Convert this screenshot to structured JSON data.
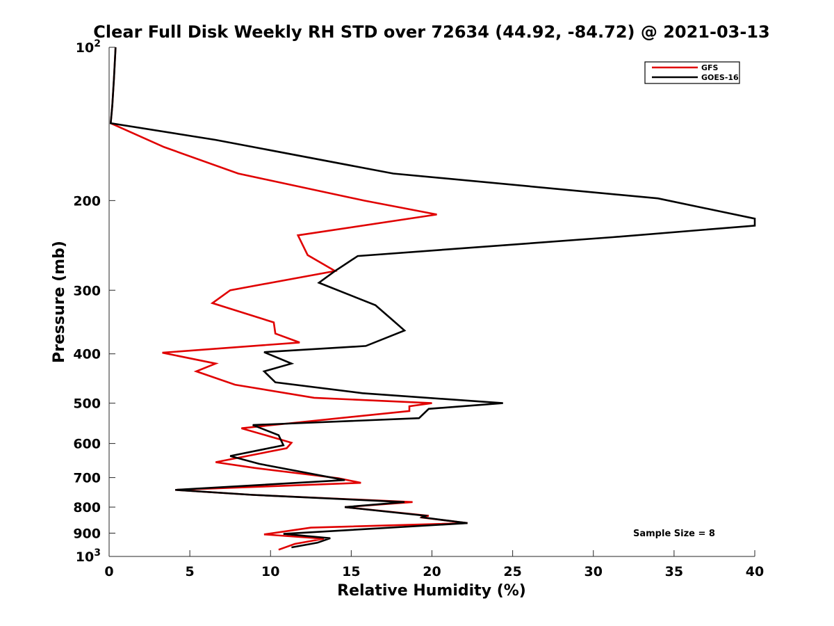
{
  "chart_data": {
    "type": "line",
    "title": "Clear Full Disk Weekly RH STD over 72634 (44.92, -84.72) @ 2021-03-13",
    "xlabel": "Relative Humidity (%)",
    "ylabel": "Pressure (mb)",
    "xlim": [
      0,
      40
    ],
    "ylim": [
      100,
      1000
    ],
    "yscale": "log",
    "y_reversed": true,
    "grid": false,
    "x_ticks": [
      0,
      5,
      10,
      15,
      20,
      25,
      30,
      35,
      40
    ],
    "y_ticks": [
      {
        "value": 100,
        "base": "10",
        "exp": "2",
        "label": ""
      },
      {
        "value": 200,
        "label": "200"
      },
      {
        "value": 300,
        "label": "300"
      },
      {
        "value": 400,
        "label": "400"
      },
      {
        "value": 500,
        "label": "500"
      },
      {
        "value": 600,
        "label": "600"
      },
      {
        "value": 700,
        "label": "700"
      },
      {
        "value": 800,
        "label": "800"
      },
      {
        "value": 900,
        "label": "900"
      },
      {
        "value": 1000,
        "base": "10",
        "exp": "3",
        "label": ""
      }
    ],
    "legend_position": "top-right",
    "annotation": "Sample Size = 8",
    "series": [
      {
        "name": "GFS",
        "color": "#e00000",
        "x": [
          0.4,
          0.3,
          0.2,
          0.1,
          3.4,
          8.0,
          15.8,
          20.3,
          11.7,
          12.3,
          14.0,
          7.5,
          6.4,
          10.2,
          10.3,
          11.8,
          3.3,
          6.6,
          5.4,
          7.8,
          12.7,
          20.0,
          18.6,
          18.6,
          8.2,
          11.3,
          11.0,
          6.6,
          9.0,
          14.2,
          15.6,
          4.1,
          8.9,
          18.8,
          14.6,
          19.8,
          19.3,
          22.2,
          12.5,
          9.6,
          13.3,
          11.5,
          10.5
        ],
        "y": [
          100,
          115,
          130,
          141,
          157,
          177,
          200,
          213,
          234,
          256,
          275,
          300,
          318,
          347,
          365,
          380,
          398,
          418,
          433,
          460,
          488,
          500,
          507,
          518,
          560,
          598,
          613,
          653,
          670,
          702,
          717,
          740,
          757,
          782,
          800,
          832,
          838,
          860,
          878,
          905,
          923,
          945,
          970
        ]
      },
      {
        "name": "GOES-16",
        "color": "#000000",
        "x": [
          0.4,
          0.3,
          0.2,
          0.1,
          6.6,
          17.6,
          34.0,
          40.0,
          40.0,
          31.2,
          15.4,
          14.0,
          13.0,
          16.5,
          17.5,
          18.3,
          15.9,
          9.6,
          11.3,
          9.6,
          10.3,
          15.7,
          24.4,
          19.8,
          19.2,
          8.9,
          10.5,
          10.8,
          7.5,
          9.3,
          14.6,
          4.1,
          8.9,
          18.3,
          14.6,
          19.6,
          19.4,
          22.2,
          10.8,
          13.7,
          12.9,
          11.3
        ],
        "y": [
          100,
          115,
          130,
          141,
          152,
          177,
          198,
          217,
          224,
          236,
          257,
          275,
          290,
          321,
          342,
          360,
          386,
          397,
          418,
          433,
          455,
          478,
          500,
          513,
          535,
          552,
          578,
          605,
          635,
          658,
          708,
          740,
          757,
          782,
          800,
          832,
          838,
          860,
          903,
          921,
          940,
          960
        ]
      }
    ]
  }
}
